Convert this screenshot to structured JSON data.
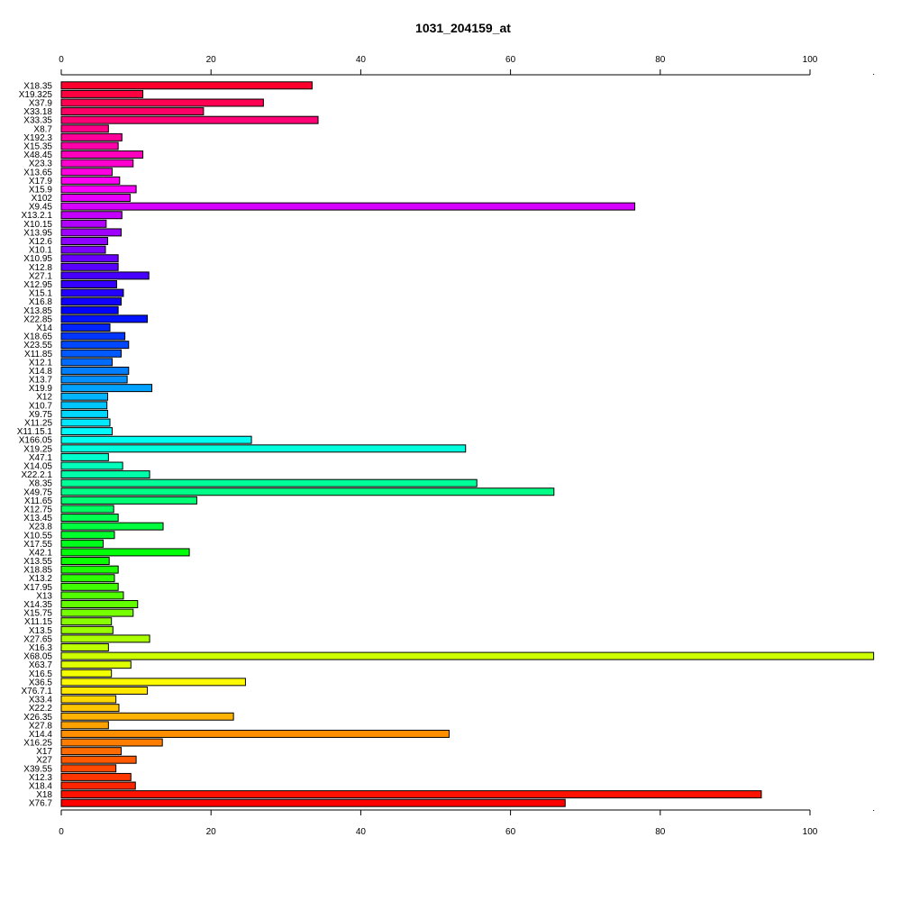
{
  "chart_data": {
    "type": "bar",
    "orientation": "horizontal",
    "title": "1031_204159_at",
    "xlabel": "",
    "ylabel": "",
    "xlim": [
      0,
      108.5
    ],
    "x_ticks": [
      0,
      20,
      40,
      60,
      80,
      100
    ],
    "x_axis_position": "top-and-bottom",
    "grid": false,
    "legend": "none",
    "categories": [
      "X18.35",
      "X19.325",
      "X37.9",
      "X33.18",
      "X33.35",
      "X8.7",
      "X192.3",
      "X15.35",
      "X48.45",
      "X23.3",
      "X13.65",
      "X17.9",
      "X15.9",
      "X102",
      "X9.45",
      "X13.2.1",
      "X10.15",
      "X13.95",
      "X12.6",
      "X10.1",
      "X10.95",
      "X12.8",
      "X27.1",
      "X12.95",
      "X15.1",
      "X16.8",
      "X13.85",
      "X22.85",
      "X14",
      "X18.65",
      "X23.55",
      "X11.85",
      "X12.1",
      "X14.8",
      "X13.7",
      "X19.9",
      "X12",
      "X10.7",
      "X9.75",
      "X11.25",
      "X11.15.1",
      "X166.05",
      "X19.25",
      "X47.1",
      "X14.05",
      "X22.2.1",
      "X8.35",
      "X49.75",
      "X11.65",
      "X12.75",
      "X13.45",
      "X23.8",
      "X10.55",
      "X17.55",
      "X42.1",
      "X13.55",
      "X18.85",
      "X13.2",
      "X17.95",
      "X13",
      "X14.35",
      "X15.75",
      "X11.15",
      "X13.5",
      "X27.65",
      "X16.3",
      "X68.05",
      "X63.7",
      "X16.5",
      "X36.5",
      "X76.7.1",
      "X33.4",
      "X22.2",
      "X26.35",
      "X27.8",
      "X14.4",
      "X16.25",
      "X17",
      "X27",
      "X39.55",
      "X12.3",
      "X18.4",
      "X18",
      "X76.7"
    ],
    "values": [
      33.5,
      10.9,
      27.0,
      19.0,
      34.3,
      6.3,
      8.1,
      7.6,
      10.9,
      9.6,
      6.8,
      7.8,
      10.0,
      9.2,
      76.6,
      8.1,
      6.0,
      8.0,
      6.2,
      5.9,
      7.6,
      7.6,
      11.7,
      7.4,
      8.3,
      8.0,
      7.6,
      11.5,
      6.5,
      8.5,
      9.0,
      8.0,
      6.8,
      9.0,
      8.8,
      12.1,
      6.2,
      6.1,
      6.2,
      6.5,
      6.8,
      25.4,
      54.0,
      6.3,
      8.2,
      11.8,
      55.5,
      65.8,
      18.1,
      7.0,
      7.6,
      13.6,
      7.1,
      5.6,
      17.1,
      6.4,
      7.6,
      7.1,
      7.6,
      8.3,
      10.2,
      9.6,
      6.7,
      6.9,
      11.8,
      6.3,
      108.5,
      9.3,
      6.7,
      24.6,
      11.5,
      7.3,
      7.7,
      23.0,
      6.3,
      51.8,
      13.5,
      8.0,
      10.0,
      7.3,
      9.3,
      9.9,
      93.5,
      67.3
    ]
  }
}
